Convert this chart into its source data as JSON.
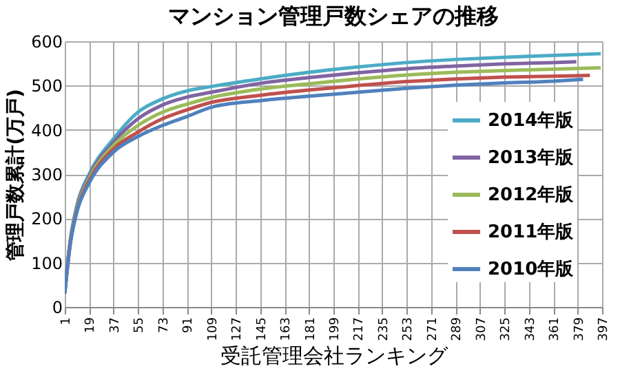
{
  "chart_data": {
    "type": "line",
    "title": "マンション管理戸数シェアの推移",
    "xlabel": "受託管理会社ランキング",
    "ylabel": "管理戸数累計(万戸)",
    "xlim": [
      1,
      397
    ],
    "xticks": [
      1,
      19,
      37,
      55,
      73,
      91,
      109,
      127,
      145,
      163,
      181,
      199,
      217,
      235,
      253,
      271,
      289,
      307,
      325,
      343,
      361,
      379,
      397
    ],
    "ylim": [
      0,
      600
    ],
    "yticks": [
      0,
      100,
      200,
      300,
      400,
      500,
      600
    ],
    "grid": true,
    "legend": "bottom right",
    "marker": "none",
    "line_style": "solid",
    "series": [
      {
        "name": "2014年版",
        "color": "#4bacc6",
        "x": [
          1,
          5,
          10,
          19,
          37,
          55,
          73,
          91,
          109,
          145,
          181,
          217,
          253,
          289,
          325,
          361,
          396
        ],
        "values": [
          35,
          150,
          230,
          300,
          380,
          440,
          470,
          488,
          498,
          515,
          530,
          542,
          552,
          559,
          564,
          568,
          572
        ]
      },
      {
        "name": "2013年版",
        "color": "#8064a2",
        "x": [
          1,
          5,
          10,
          19,
          37,
          55,
          73,
          91,
          109,
          145,
          181,
          217,
          253,
          289,
          325,
          361,
          378
        ],
        "values": [
          34,
          148,
          226,
          295,
          372,
          425,
          456,
          474,
          485,
          505,
          518,
          529,
          538,
          544,
          549,
          552,
          554
        ]
      },
      {
        "name": "2012年版",
        "color": "#9bbb59",
        "x": [
          1,
          5,
          10,
          19,
          37,
          55,
          73,
          91,
          109,
          145,
          181,
          217,
          253,
          289,
          325,
          361,
          396
        ],
        "values": [
          32,
          145,
          222,
          290,
          365,
          410,
          440,
          458,
          473,
          492,
          504,
          515,
          524,
          530,
          534,
          537,
          540
        ]
      },
      {
        "name": "2011年版",
        "color": "#c0504d",
        "x": [
          1,
          5,
          10,
          19,
          37,
          55,
          73,
          91,
          109,
          145,
          181,
          217,
          253,
          289,
          325,
          361,
          388
        ],
        "values": [
          31,
          142,
          218,
          285,
          357,
          395,
          425,
          445,
          462,
          478,
          490,
          500,
          509,
          515,
          519,
          521,
          523
        ]
      },
      {
        "name": "2010年版",
        "color": "#4f81bd",
        "x": [
          1,
          5,
          10,
          19,
          37,
          55,
          73,
          91,
          109,
          145,
          181,
          217,
          253,
          289,
          325,
          361,
          383
        ],
        "values": [
          30,
          140,
          215,
          280,
          350,
          385,
          410,
          430,
          451,
          466,
          476,
          485,
          494,
          501,
          506,
          510,
          514
        ]
      }
    ]
  }
}
